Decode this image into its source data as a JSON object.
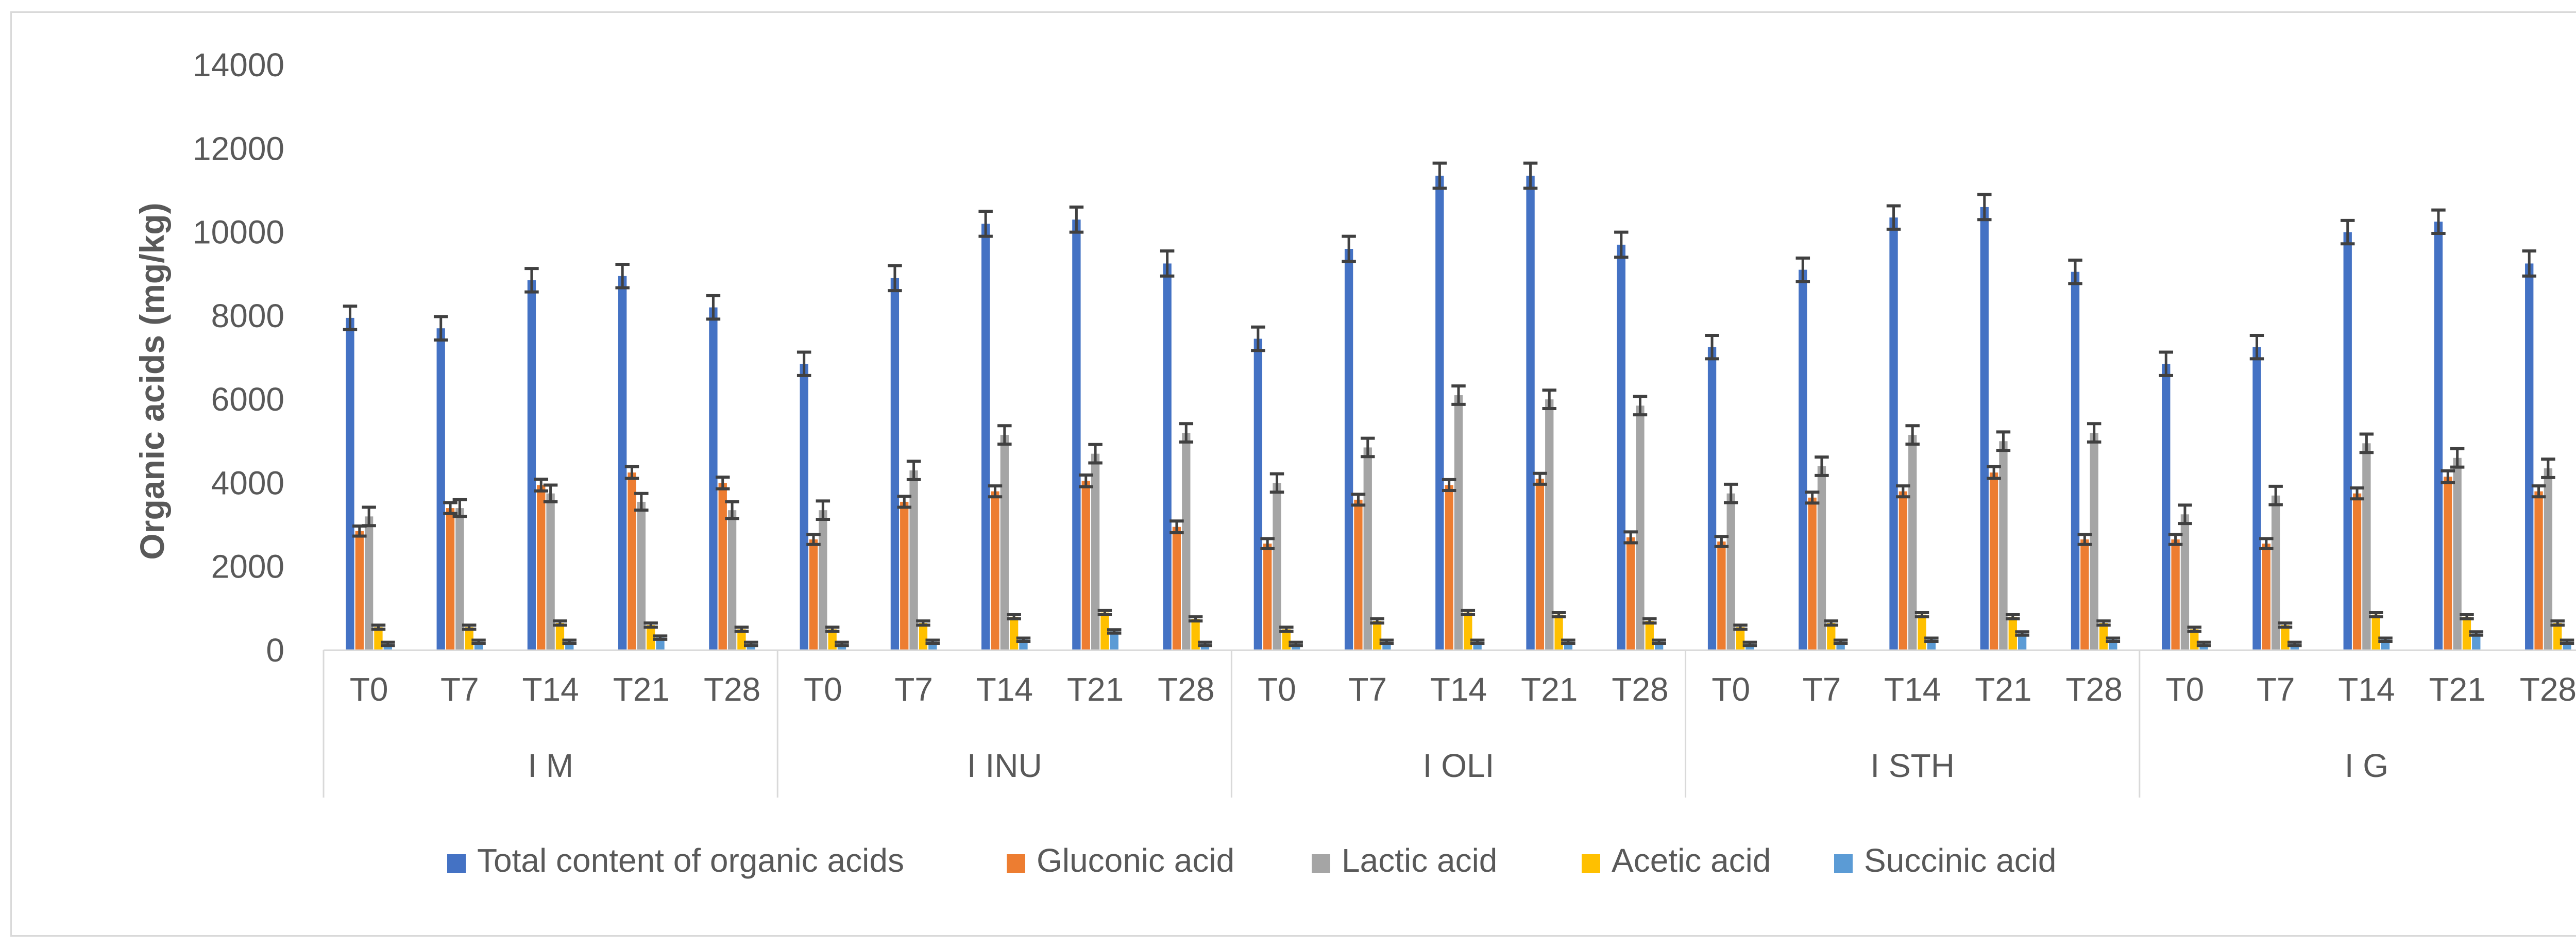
{
  "chart_data": {
    "type": "bar",
    "ylabel": "Organic acids (mg/kg)",
    "xlabel": "",
    "ylim": [
      0,
      14000
    ],
    "yticks": [
      0,
      2000,
      4000,
      6000,
      8000,
      10000,
      12000,
      14000
    ],
    "grid": false,
    "legend_position": "bottom",
    "groups": [
      {
        "name": "I M",
        "times": [
          "T0",
          "T7",
          "T14",
          "T21",
          "T28"
        ]
      },
      {
        "name": "I INU",
        "times": [
          "T0",
          "T7",
          "T14",
          "T21",
          "T28"
        ]
      },
      {
        "name": "I OLI",
        "times": [
          "T0",
          "T7",
          "T14",
          "T21",
          "T28"
        ]
      },
      {
        "name": "I STH",
        "times": [
          "T0",
          "T7",
          "T14",
          "T21",
          "T28"
        ]
      },
      {
        "name": "I G",
        "times": [
          "T0",
          "T7",
          "T14",
          "T21",
          "T28"
        ]
      }
    ],
    "series": [
      {
        "name": "Total content of organic acids",
        "color": "#4472C4",
        "values": [
          7950,
          7700,
          8850,
          8950,
          8200,
          6850,
          8900,
          10200,
          10300,
          9250,
          7450,
          9600,
          11350,
          11350,
          9700,
          7250,
          9100,
          10350,
          10600,
          9050,
          6850,
          7250,
          10000,
          10250,
          9250
        ],
        "errors": [
          280,
          280,
          280,
          280,
          280,
          280,
          300,
          300,
          300,
          300,
          280,
          300,
          300,
          300,
          300,
          280,
          280,
          280,
          300,
          280,
          280,
          280,
          280,
          280,
          300
        ]
      },
      {
        "name": "Gluconic acid",
        "color": "#ED7D31",
        "values": [
          2850,
          3400,
          3950,
          4250,
          4000,
          2650,
          3550,
          3800,
          4050,
          2950,
          2550,
          3600,
          3950,
          4100,
          2700,
          2600,
          3650,
          3800,
          4250,
          2650,
          2650,
          2550,
          3750,
          4150,
          3800
        ],
        "errors": [
          120,
          130,
          140,
          140,
          140,
          120,
          130,
          130,
          140,
          140,
          120,
          130,
          130,
          130,
          130,
          120,
          130,
          130,
          140,
          120,
          120,
          120,
          130,
          140,
          130
        ]
      },
      {
        "name": "Lactic acid",
        "color": "#A5A5A5",
        "values": [
          3200,
          3400,
          3750,
          3550,
          3350,
          3350,
          4300,
          5150,
          4700,
          5200,
          4000,
          4850,
          6100,
          6000,
          5850,
          3750,
          4400,
          5150,
          5000,
          5200,
          3250,
          3700,
          4950,
          4600,
          4350
        ],
        "errors": [
          220,
          200,
          200,
          200,
          200,
          220,
          220,
          220,
          220,
          220,
          220,
          220,
          220,
          220,
          220,
          220,
          220,
          220,
          220,
          220,
          220,
          220,
          220,
          220,
          220
        ]
      },
      {
        "name": "Acetic acid",
        "color": "#FFC000",
        "values": [
          550,
          550,
          650,
          600,
          500,
          500,
          650,
          800,
          900,
          750,
          500,
          700,
          900,
          850,
          700,
          550,
          650,
          850,
          800,
          650,
          500,
          600,
          850,
          800,
          650
        ],
        "errors": [
          50,
          50,
          50,
          50,
          50,
          50,
          50,
          50,
          50,
          50,
          50,
          50,
          50,
          50,
          50,
          50,
          50,
          50,
          50,
          50,
          50,
          50,
          50,
          50,
          50
        ]
      },
      {
        "name": "Succinic acid",
        "color": "#5B9BD5",
        "values": [
          150,
          200,
          200,
          300,
          150,
          150,
          200,
          250,
          450,
          150,
          150,
          200,
          200,
          200,
          200,
          150,
          200,
          250,
          400,
          250,
          150,
          150,
          250,
          400,
          200
        ],
        "errors": [
          40,
          40,
          40,
          40,
          40,
          40,
          40,
          40,
          40,
          40,
          40,
          40,
          40,
          40,
          40,
          40,
          40,
          40,
          40,
          40,
          40,
          40,
          40,
          40,
          40
        ]
      }
    ]
  }
}
